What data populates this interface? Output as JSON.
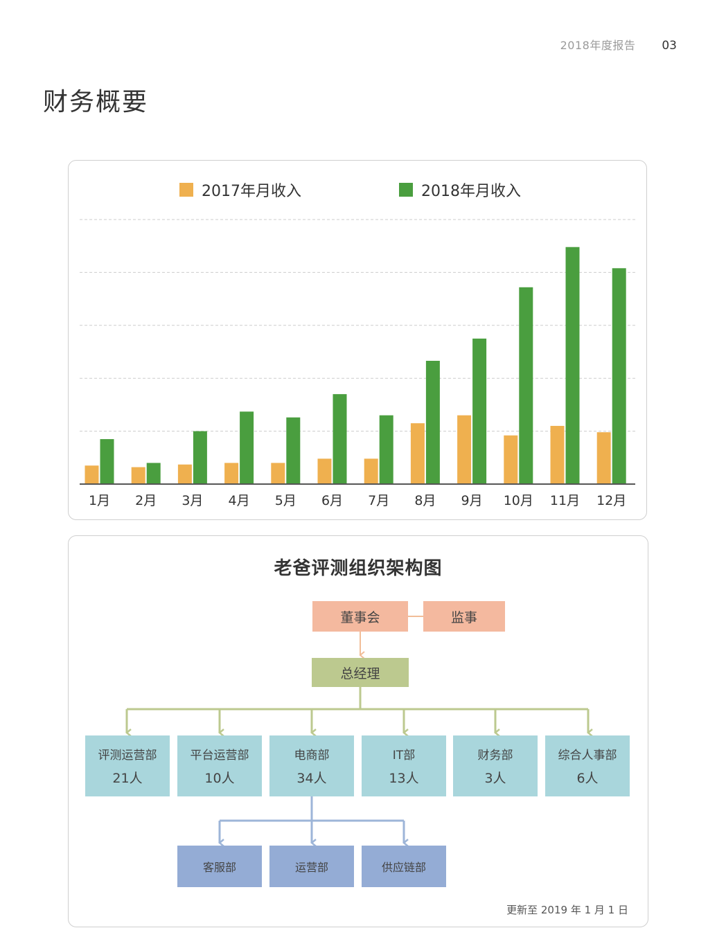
{
  "header": {
    "report_label": "2018年度报告",
    "page_number": "03"
  },
  "page_title": "财务概要",
  "chart_data": {
    "type": "bar",
    "categories": [
      "1月",
      "2月",
      "3月",
      "4月",
      "5月",
      "6月",
      "7月",
      "8月",
      "9月",
      "10月",
      "11月",
      "12月"
    ],
    "series": [
      {
        "name": "2017年月收入",
        "color": "#efb04f",
        "values": [
          0.35,
          0.32,
          0.37,
          0.4,
          0.4,
          0.48,
          0.48,
          1.15,
          1.3,
          0.92,
          1.1,
          0.98
        ]
      },
      {
        "name": "2018年月收入",
        "color": "#4a9e3f",
        "values": [
          0.85,
          0.4,
          1.0,
          1.37,
          1.26,
          1.7,
          1.3,
          2.33,
          2.75,
          3.72,
          4.48,
          4.08
        ]
      }
    ],
    "title": "",
    "xlabel": "",
    "ylabel": "",
    "ylim": [
      0,
      5
    ],
    "grid": true,
    "legend": "top"
  },
  "org_chart": {
    "title": "老爸评测组织架构图",
    "board": "董事会",
    "supervisor": "监事",
    "gm": "总经理",
    "departments": [
      {
        "name": "评测运营部",
        "count": "21人"
      },
      {
        "name": "平台运营部",
        "count": "10人"
      },
      {
        "name": "电商部",
        "count": "34人"
      },
      {
        "name": "IT部",
        "count": "13人"
      },
      {
        "name": "财务部",
        "count": "3人"
      },
      {
        "name": "综合人事部",
        "count": "6人"
      }
    ],
    "subdepartments": [
      "客服部",
      "运营部",
      "供应链部"
    ],
    "update_note": "更新至 2019 年 1 月 1 日"
  }
}
